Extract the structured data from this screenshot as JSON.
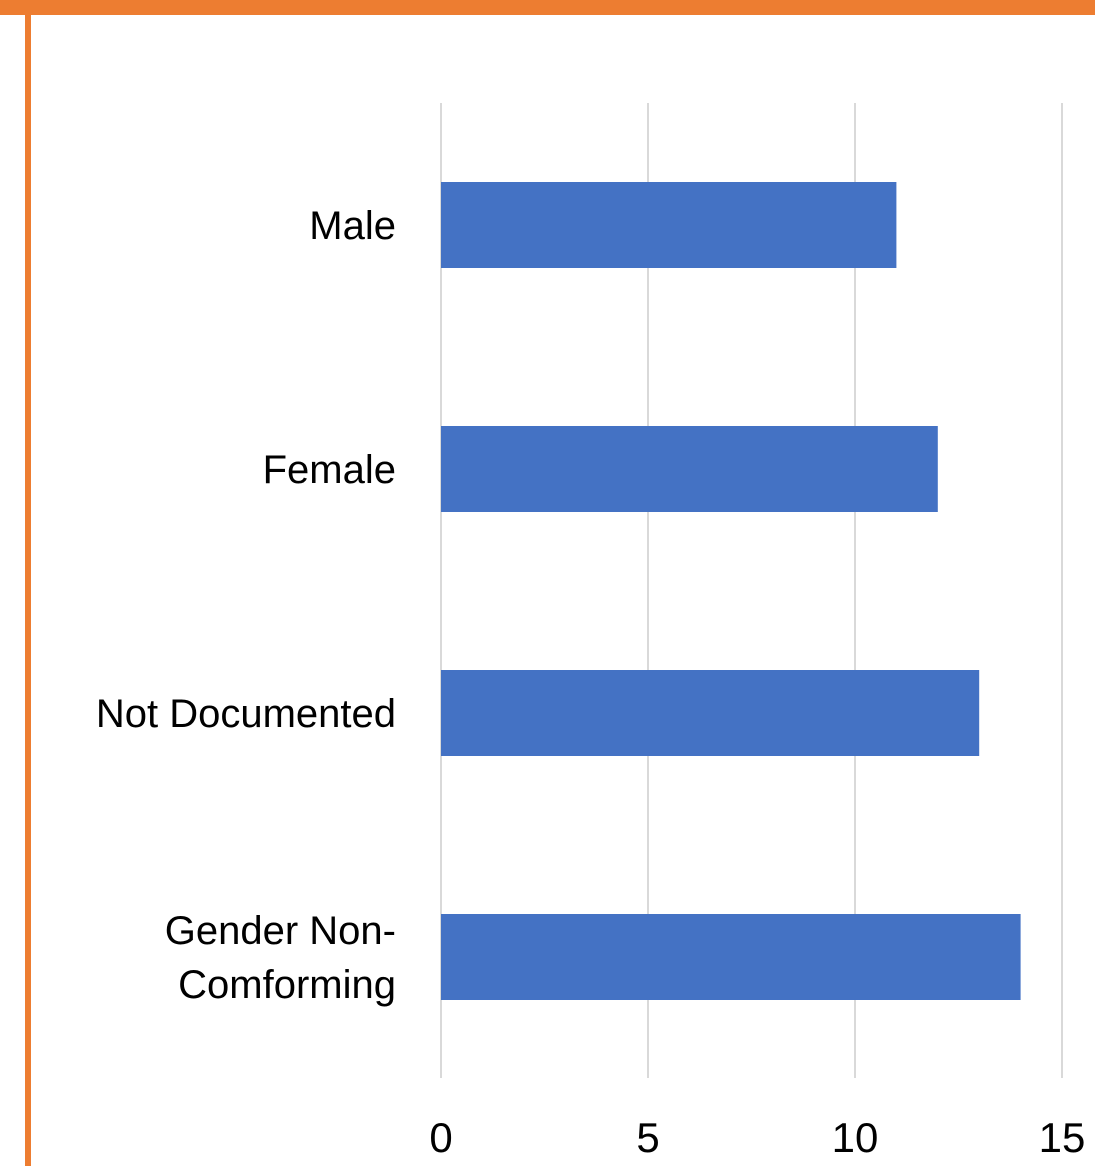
{
  "chart_data": {
    "type": "bar",
    "orientation": "horizontal",
    "categories": [
      [
        "Male"
      ],
      [
        "Female"
      ],
      [
        "Not Documented"
      ],
      [
        "Gender Non-",
        "Comforming"
      ]
    ],
    "values": [
      11,
      12,
      13,
      14
    ],
    "xlim": [
      0,
      15
    ],
    "xticks": [
      "0",
      "5",
      "10",
      "15"
    ],
    "grid": "vertical",
    "legend": "none",
    "bar_color": "#4472C4",
    "accent_color": "#ED7D31"
  }
}
